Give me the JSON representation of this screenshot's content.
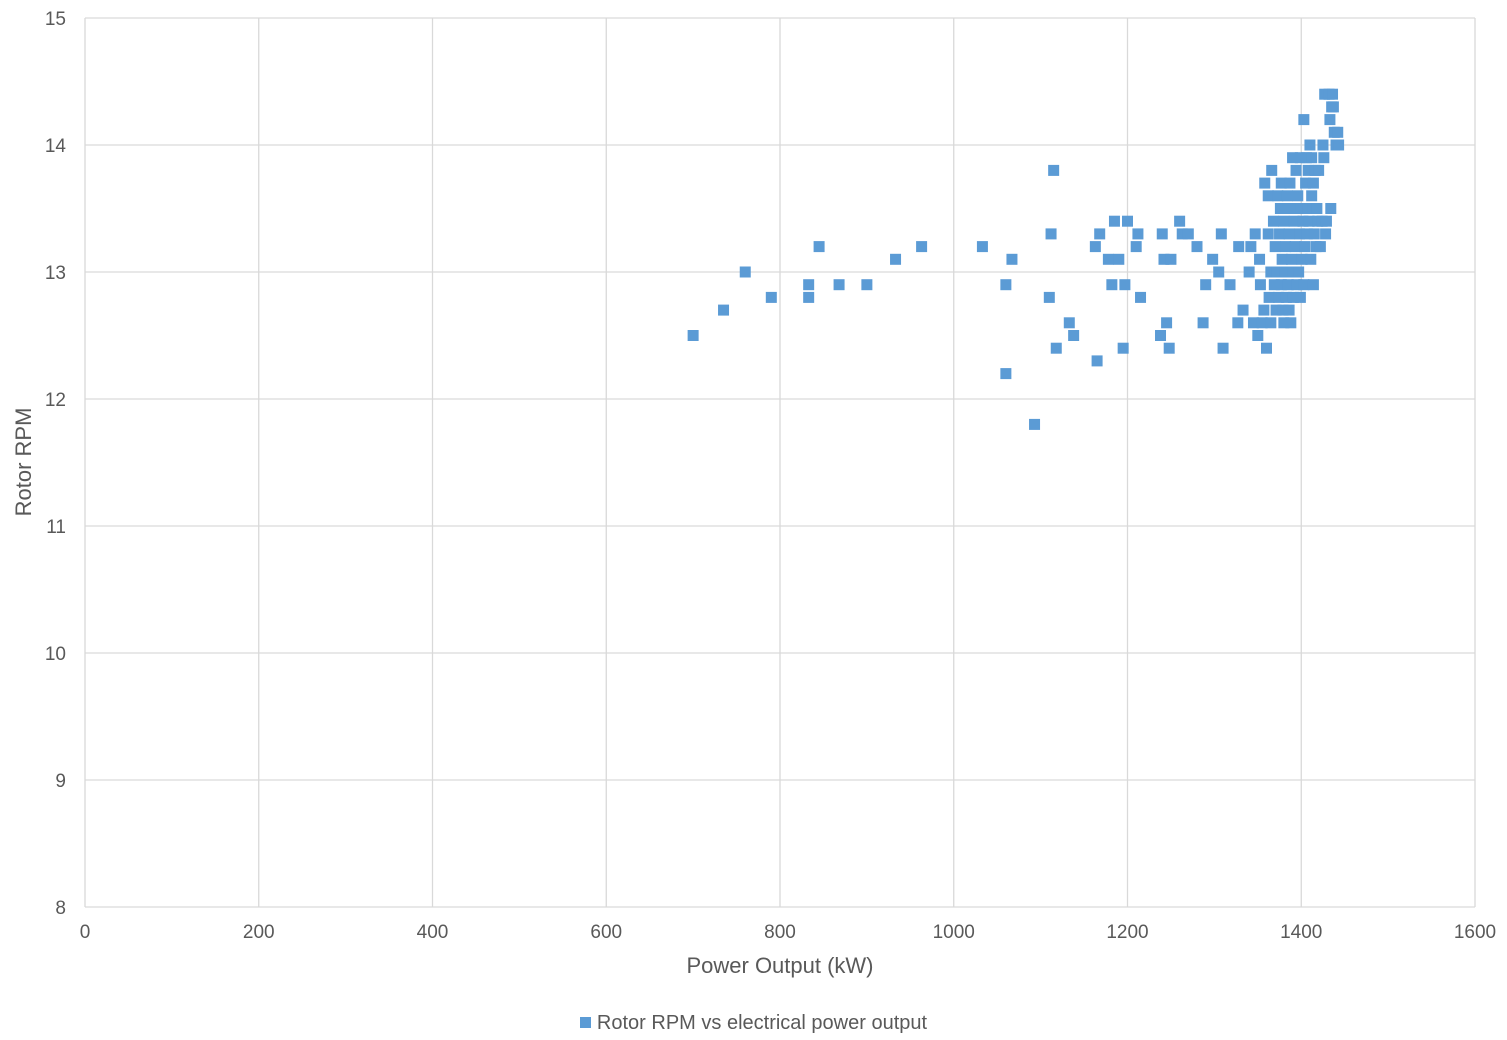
{
  "colors": {
    "marker": "#5B9BD5",
    "grid": "#D9D9D9",
    "text": "#595959"
  },
  "chart_data": {
    "type": "scatter",
    "title": "",
    "xlabel": "Power Output (kW)",
    "ylabel": "Rotor RPM",
    "xlim": [
      0,
      1600
    ],
    "ylim": [
      8,
      15
    ],
    "xticks": [
      0,
      200,
      400,
      600,
      800,
      1000,
      1200,
      1400,
      1600
    ],
    "yticks": [
      8,
      9,
      10,
      11,
      12,
      13,
      14,
      15
    ],
    "grid": true,
    "legend_position": "bottom",
    "series": [
      {
        "name": "Rotor RPM vs electrical power output",
        "points": [
          [
            700,
            12.5
          ],
          [
            735,
            12.7
          ],
          [
            760,
            13.0
          ],
          [
            790,
            12.8
          ],
          [
            833,
            12.9
          ],
          [
            833,
            12.8
          ],
          [
            845,
            13.2
          ],
          [
            868,
            12.9
          ],
          [
            900,
            12.9
          ],
          [
            933,
            13.1
          ],
          [
            963,
            13.2
          ],
          [
            1033,
            13.2
          ],
          [
            1060,
            12.9
          ],
          [
            1060,
            12.2
          ],
          [
            1067,
            13.1
          ],
          [
            1093,
            11.8
          ],
          [
            1110,
            12.8
          ],
          [
            1112,
            13.3
          ],
          [
            1115,
            13.8
          ],
          [
            1118,
            12.4
          ],
          [
            1133,
            12.6
          ],
          [
            1138,
            12.5
          ],
          [
            1163,
            13.2
          ],
          [
            1165,
            12.3
          ],
          [
            1168,
            13.3
          ],
          [
            1178,
            13.1
          ],
          [
            1182,
            12.9
          ],
          [
            1185,
            13.4
          ],
          [
            1190,
            13.1
          ],
          [
            1195,
            12.4
          ],
          [
            1197,
            12.9
          ],
          [
            1200,
            13.4
          ],
          [
            1210,
            13.2
          ],
          [
            1212,
            13.3
          ],
          [
            1215,
            12.8
          ],
          [
            1238,
            12.5
          ],
          [
            1240,
            13.3
          ],
          [
            1242,
            13.1
          ],
          [
            1245,
            12.6
          ],
          [
            1248,
            12.4
          ],
          [
            1250,
            13.1
          ],
          [
            1260,
            13.4
          ],
          [
            1263,
            13.3
          ],
          [
            1270,
            13.3
          ],
          [
            1280,
            13.2
          ],
          [
            1287,
            12.6
          ],
          [
            1290,
            12.9
          ],
          [
            1298,
            13.1
          ],
          [
            1305,
            13.0
          ],
          [
            1308,
            13.3
          ],
          [
            1310,
            12.4
          ],
          [
            1318,
            12.9
          ],
          [
            1327,
            12.6
          ],
          [
            1328,
            13.2
          ],
          [
            1333,
            12.7
          ],
          [
            1340,
            13.0
          ],
          [
            1342,
            13.2
          ],
          [
            1345,
            12.6
          ],
          [
            1347,
            13.3
          ],
          [
            1350,
            12.5
          ],
          [
            1352,
            13.1
          ],
          [
            1353,
            12.9
          ],
          [
            1355,
            12.6
          ],
          [
            1357,
            12.7
          ],
          [
            1358,
            13.7
          ],
          [
            1360,
            12.4
          ],
          [
            1362,
            13.3
          ],
          [
            1362,
            13.6
          ],
          [
            1363,
            12.8
          ],
          [
            1365,
            13.0
          ],
          [
            1365,
            12.6
          ],
          [
            1366,
            13.8
          ],
          [
            1368,
            13.4
          ],
          [
            1369,
            12.9
          ],
          [
            1370,
            13.2
          ],
          [
            1371,
            12.7
          ],
          [
            1372,
            13.0
          ],
          [
            1373,
            13.6
          ],
          [
            1374,
            12.8
          ],
          [
            1375,
            13.3
          ],
          [
            1376,
            13.5
          ],
          [
            1377,
            13.7
          ],
          [
            1377,
            12.9
          ],
          [
            1378,
            13.1
          ],
          [
            1379,
            12.7
          ],
          [
            1380,
            12.6
          ],
          [
            1380,
            13.4
          ],
          [
            1381,
            13.0
          ],
          [
            1382,
            13.2
          ],
          [
            1383,
            12.8
          ],
          [
            1384,
            13.6
          ],
          [
            1385,
            12.9
          ],
          [
            1386,
            13.3
          ],
          [
            1386,
            12.7
          ],
          [
            1387,
            13.7
          ],
          [
            1388,
            13.5
          ],
          [
            1388,
            12.6
          ],
          [
            1389,
            13.1
          ],
          [
            1390,
            13.0
          ],
          [
            1390,
            13.9
          ],
          [
            1391,
            12.8
          ],
          [
            1392,
            13.4
          ],
          [
            1393,
            13.2
          ],
          [
            1394,
            13.8
          ],
          [
            1395,
            12.9
          ],
          [
            1396,
            13.6
          ],
          [
            1397,
            13.0
          ],
          [
            1398,
            13.3
          ],
          [
            1399,
            13.9
          ],
          [
            1399,
            12.8
          ],
          [
            1400,
            13.5
          ],
          [
            1401,
            13.1
          ],
          [
            1402,
            13.4
          ],
          [
            1403,
            12.9
          ],
          [
            1403,
            14.2
          ],
          [
            1404,
            13.2
          ],
          [
            1405,
            13.7
          ],
          [
            1406,
            13.9
          ],
          [
            1407,
            13.3
          ],
          [
            1408,
            13.5
          ],
          [
            1408,
            13.8
          ],
          [
            1409,
            13.4
          ],
          [
            1410,
            14.0
          ],
          [
            1411,
            13.1
          ],
          [
            1412,
            13.9
          ],
          [
            1412,
            13.6
          ],
          [
            1413,
            13.5
          ],
          [
            1414,
            13.7
          ],
          [
            1414,
            12.9
          ],
          [
            1415,
            13.3
          ],
          [
            1416,
            13.8
          ],
          [
            1417,
            13.2
          ],
          [
            1418,
            13.5
          ],
          [
            1419,
            13.4
          ],
          [
            1420,
            13.8
          ],
          [
            1422,
            13.2
          ],
          [
            1424,
            13.4
          ],
          [
            1425,
            14.0
          ],
          [
            1426,
            13.9
          ],
          [
            1427,
            14.4
          ],
          [
            1428,
            13.3
          ],
          [
            1429,
            13.4
          ],
          [
            1432,
            14.4
          ],
          [
            1433,
            14.2
          ],
          [
            1434,
            13.5
          ],
          [
            1435,
            14.3
          ],
          [
            1436,
            14.4
          ],
          [
            1437,
            14.3
          ],
          [
            1438,
            14.1
          ],
          [
            1440,
            14.0
          ],
          [
            1442,
            14.1
          ],
          [
            1443,
            14.0
          ]
        ]
      }
    ]
  }
}
